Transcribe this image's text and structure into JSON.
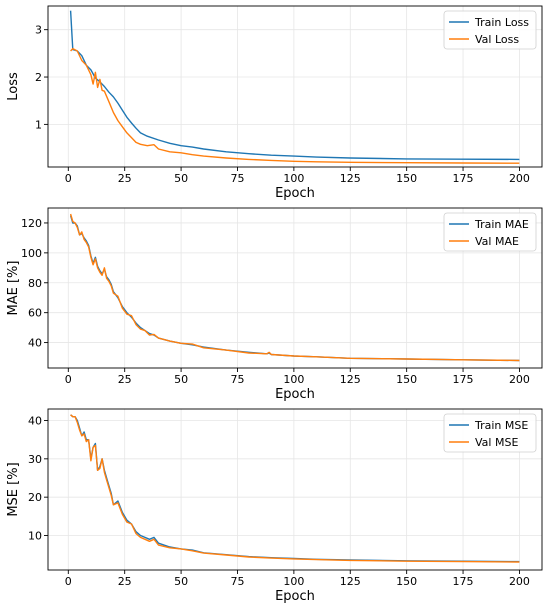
{
  "chart_data": [
    {
      "type": "line",
      "title": "",
      "xlabel": "Epoch",
      "ylabel": "Loss",
      "xlim": [
        -9,
        210
      ],
      "ylim": [
        0.1,
        3.5
      ],
      "xticks": [
        0,
        25,
        50,
        75,
        100,
        125,
        150,
        175,
        200
      ],
      "yticks": [
        1,
        2,
        3
      ],
      "grid": true,
      "legend": "top-right",
      "series": [
        {
          "name": "Train Loss",
          "color": "#1f77b4",
          "x": [
            1,
            2,
            4,
            6,
            8,
            10,
            12,
            14,
            16,
            18,
            20,
            22,
            24,
            26,
            28,
            30,
            32,
            35,
            40,
            45,
            50,
            55,
            60,
            70,
            80,
            90,
            100,
            110,
            125,
            150,
            175,
            200
          ],
          "y": [
            3.4,
            2.58,
            2.55,
            2.45,
            2.25,
            2.15,
            1.98,
            1.9,
            1.8,
            1.68,
            1.58,
            1.45,
            1.3,
            1.15,
            1.03,
            0.92,
            0.82,
            0.75,
            0.67,
            0.6,
            0.55,
            0.52,
            0.48,
            0.42,
            0.38,
            0.35,
            0.33,
            0.31,
            0.29,
            0.27,
            0.265,
            0.26
          ]
        },
        {
          "name": "Val Loss",
          "color": "#ff7f0e",
          "x": [
            1,
            2,
            4,
            6,
            8,
            10,
            11,
            12,
            13,
            14,
            15,
            16,
            18,
            20,
            22,
            24,
            26,
            28,
            30,
            32,
            35,
            38,
            40,
            45,
            50,
            55,
            60,
            70,
            80,
            90,
            100,
            110,
            125,
            150,
            175,
            200
          ],
          "y": [
            2.55,
            2.6,
            2.55,
            2.35,
            2.25,
            2.05,
            1.85,
            2.1,
            1.78,
            1.95,
            1.72,
            1.7,
            1.48,
            1.25,
            1.08,
            0.95,
            0.82,
            0.72,
            0.62,
            0.58,
            0.55,
            0.57,
            0.48,
            0.42,
            0.4,
            0.36,
            0.33,
            0.29,
            0.26,
            0.24,
            0.22,
            0.21,
            0.2,
            0.19,
            0.185,
            0.18
          ]
        }
      ]
    },
    {
      "type": "line",
      "title": "",
      "xlabel": "Epoch",
      "ylabel": "MAE [%]",
      "xlim": [
        -9,
        210
      ],
      "ylim": [
        23,
        130
      ],
      "xticks": [
        0,
        25,
        50,
        75,
        100,
        125,
        150,
        175,
        200
      ],
      "yticks": [
        40,
        60,
        80,
        100,
        120
      ],
      "grid": true,
      "legend": "top-right",
      "series": [
        {
          "name": "Train MAE",
          "color": "#1f77b4",
          "x": [
            1,
            2,
            3,
            4,
            5,
            6,
            7,
            8,
            9,
            10,
            11,
            12,
            13,
            14,
            15,
            16,
            17,
            18,
            19,
            20,
            22,
            24,
            26,
            28,
            30,
            32,
            34,
            36,
            38,
            40,
            45,
            50,
            55,
            60,
            70,
            80,
            88,
            89,
            90,
            100,
            110,
            125,
            150,
            175,
            200
          ],
          "y": [
            125,
            120,
            120,
            118,
            112,
            113,
            110,
            108,
            105,
            98,
            93,
            97,
            91,
            88,
            86,
            89,
            84,
            82,
            79,
            74,
            70,
            64,
            60,
            57,
            53,
            50,
            48,
            46,
            45,
            43,
            41,
            39.5,
            38.5,
            37,
            35,
            33.5,
            32.5,
            33,
            32,
            31,
            30.5,
            29.5,
            29,
            28.5,
            28
          ]
        },
        {
          "name": "Val MAE",
          "color": "#ff7f0e",
          "x": [
            1,
            2,
            3,
            4,
            5,
            6,
            7,
            8,
            9,
            10,
            11,
            12,
            13,
            14,
            15,
            16,
            17,
            18,
            19,
            20,
            22,
            24,
            26,
            28,
            30,
            32,
            34,
            36,
            38,
            40,
            45,
            50,
            55,
            60,
            70,
            80,
            88,
            89,
            90,
            100,
            110,
            125,
            150,
            175,
            200
          ],
          "y": [
            126,
            121,
            120,
            117,
            112,
            114,
            109,
            107,
            104,
            97,
            92,
            96,
            90,
            87,
            85,
            90,
            83,
            81,
            78,
            73,
            71,
            63,
            59,
            58,
            52,
            49,
            48,
            45,
            45.5,
            43,
            41,
            39.5,
            39,
            36.5,
            35,
            33,
            32.5,
            33.5,
            32,
            31,
            30.5,
            29.5,
            29,
            28.5,
            28
          ]
        }
      ]
    },
    {
      "type": "line",
      "title": "",
      "xlabel": "Epoch",
      "ylabel": "MSE [%]",
      "xlim": [
        -9,
        210
      ],
      "ylim": [
        1,
        43
      ],
      "xticks": [
        0,
        25,
        50,
        75,
        100,
        125,
        150,
        175,
        200
      ],
      "yticks": [
        10,
        20,
        30,
        40
      ],
      "grid": true,
      "legend": "top-right",
      "series": [
        {
          "name": "Train MSE",
          "color": "#1f77b4",
          "x": [
            1,
            2,
            3,
            4,
            5,
            6,
            7,
            8,
            9,
            10,
            11,
            12,
            13,
            14,
            15,
            16,
            17,
            18,
            19,
            20,
            22,
            24,
            26,
            28,
            30,
            32,
            34,
            36,
            38,
            40,
            45,
            50,
            55,
            60,
            70,
            80,
            90,
            100,
            110,
            125,
            150,
            175,
            200
          ],
          "y": [
            41.5,
            41,
            41,
            40,
            38,
            36,
            37,
            35,
            35,
            30,
            33,
            34,
            27,
            28,
            30,
            27,
            25,
            23,
            21,
            18,
            19,
            16,
            14,
            13,
            11,
            10,
            9.5,
            9,
            9.5,
            8,
            7,
            6.5,
            6.2,
            5.5,
            5,
            4.5,
            4.2,
            4,
            3.8,
            3.6,
            3.4,
            3.3,
            3.2
          ]
        },
        {
          "name": "Val MSE",
          "color": "#ff7f0e",
          "x": [
            1,
            2,
            3,
            4,
            5,
            6,
            7,
            8,
            9,
            10,
            11,
            12,
            13,
            14,
            15,
            16,
            17,
            18,
            19,
            20,
            22,
            24,
            26,
            28,
            30,
            32,
            34,
            36,
            38,
            40,
            45,
            50,
            55,
            60,
            70,
            80,
            90,
            100,
            110,
            125,
            150,
            175,
            200
          ],
          "y": [
            41.5,
            41,
            41,
            39.5,
            37.5,
            36,
            36.5,
            34.5,
            35,
            29.5,
            33,
            33.5,
            27,
            27.5,
            30,
            26.5,
            24.5,
            22.5,
            20.5,
            18,
            18.5,
            15.5,
            13.5,
            13,
            10.5,
            9.5,
            9,
            8.5,
            9,
            7.5,
            6.8,
            6.5,
            6,
            5.4,
            4.9,
            4.4,
            4.1,
            3.9,
            3.7,
            3.5,
            3.3,
            3.2,
            3.1
          ]
        }
      ]
    }
  ]
}
